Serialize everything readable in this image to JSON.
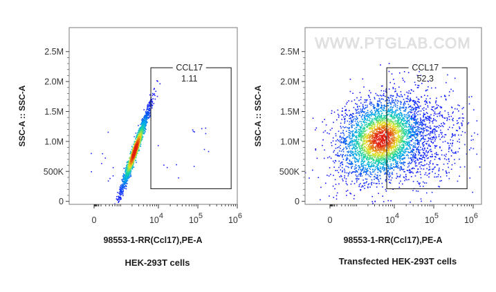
{
  "watermark": "WWW.PTGLAB.COM",
  "colors": {
    "density_low": "#1a0dff",
    "density_mid": "#18e0c0",
    "density_high": "#ffe020",
    "density_peak": "#e02010",
    "gate": "#222222"
  },
  "chart_data": [
    {
      "type": "scatter",
      "subtype": "flow-cytometry-density",
      "caption": "HEK-293T cells",
      "xlabel": "98553-1-RR(Ccl17),PE-A",
      "ylabel": "SSC-A :: SSC-A",
      "x_scale": "biexponential",
      "x_ticks": [
        {
          "value": 0,
          "base": "0",
          "exp": ""
        },
        {
          "value": 10000,
          "base": "10",
          "exp": "4"
        },
        {
          "value": 100000,
          "base": "10",
          "exp": "5"
        },
        {
          "value": 1000000,
          "base": "10",
          "exp": "6"
        }
      ],
      "ylim": [
        -50000,
        2900000
      ],
      "y_ticks": [
        {
          "value": 0,
          "label": "0"
        },
        {
          "value": 500000,
          "label": "500K"
        },
        {
          "value": 1000000,
          "label": "1.0M"
        },
        {
          "value": 1500000,
          "label": "1.5M"
        },
        {
          "value": 2000000,
          "label": "2.0M"
        },
        {
          "value": 2500000,
          "label": "2.5M"
        }
      ],
      "gate": {
        "name": "CCL17",
        "percent": "1.11",
        "x_range": [
          6300,
          700000
        ],
        "y_range": [
          210000,
          2230000
        ]
      },
      "population": {
        "center_x": 2300,
        "center_y": 850000,
        "shape": "narrow diagonal"
      }
    },
    {
      "type": "scatter",
      "subtype": "flow-cytometry-density",
      "caption": "Transfected HEK-293T cells",
      "xlabel": "98553-1-RR(Ccl17),PE-A",
      "ylabel": "SSC-A :: SSC-A",
      "x_scale": "biexponential",
      "x_ticks": [
        {
          "value": 0,
          "base": "0",
          "exp": ""
        },
        {
          "value": 10000,
          "base": "10",
          "exp": "4"
        },
        {
          "value": 100000,
          "base": "10",
          "exp": "5"
        },
        {
          "value": 1000000,
          "base": "10",
          "exp": "6"
        }
      ],
      "ylim": [
        -50000,
        2900000
      ],
      "y_ticks": [
        {
          "value": 0,
          "label": "0"
        },
        {
          "value": 500000,
          "label": "500K"
        },
        {
          "value": 1000000,
          "label": "1.0M"
        },
        {
          "value": 1500000,
          "label": "1.5M"
        },
        {
          "value": 2000000,
          "label": "2.0M"
        },
        {
          "value": 2500000,
          "label": "2.5M"
        }
      ],
      "gate": {
        "name": "CCL17",
        "percent": "52.3",
        "x_range": [
          6300,
          700000
        ],
        "y_range": [
          210000,
          2230000
        ]
      },
      "population": {
        "center_x": 4500,
        "center_y": 1050000,
        "shape": "broad cloud"
      }
    }
  ]
}
